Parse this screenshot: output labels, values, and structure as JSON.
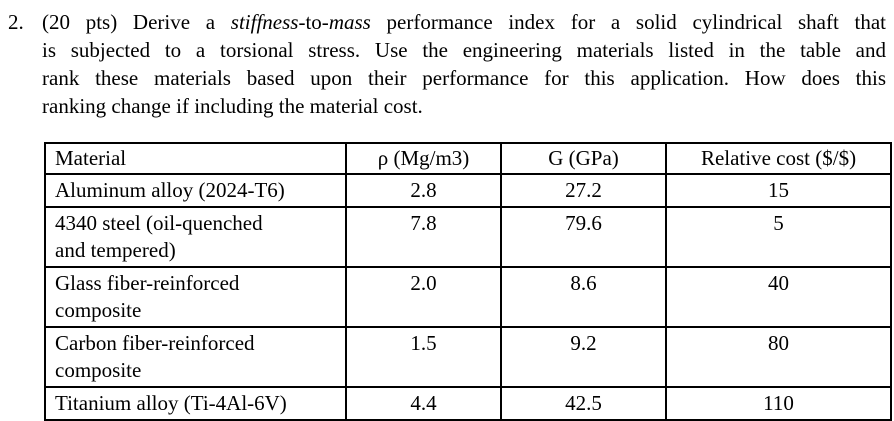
{
  "problem": {
    "number": "2.",
    "line1": {
      "pre": "(20 pts) Derive a ",
      "italic1": "stiffness",
      "mid": "-to-",
      "italic2": "mass",
      "post": " performance index for a solid cylindrical shaft that"
    },
    "line2": "is subjected to a torsional stress. Use the engineering materials listed in the table and",
    "line3": "rank these materials based upon their performance for this application. How does this",
    "line4": "ranking change if including the material cost."
  },
  "table": {
    "headers": [
      "Material",
      "ρ (Mg/m3)",
      "G (GPa)",
      "Relative cost ($/$)"
    ],
    "rows": [
      {
        "material": "Aluminum alloy (2024-T6)",
        "density": "2.8",
        "shear_modulus": "27.2",
        "cost": "15"
      },
      {
        "material": "4340 steel (oil-quenched\nand tempered)",
        "density": "7.8",
        "shear_modulus": "79.6",
        "cost": "5"
      },
      {
        "material": "Glass fiber-reinforced\ncomposite",
        "density": "2.0",
        "shear_modulus": "8.6",
        "cost": "40"
      },
      {
        "material": "Carbon fiber-reinforced\ncomposite",
        "density": "1.5",
        "shear_modulus": "9.2",
        "cost": "80"
      },
      {
        "material": "Titanium alloy (Ti-4Al-6V)",
        "density": "4.4",
        "shear_modulus": "42.5",
        "cost": "110"
      }
    ]
  },
  "colors": {
    "text": "#000000",
    "background": "#ffffff",
    "table_border": "#000000"
  }
}
